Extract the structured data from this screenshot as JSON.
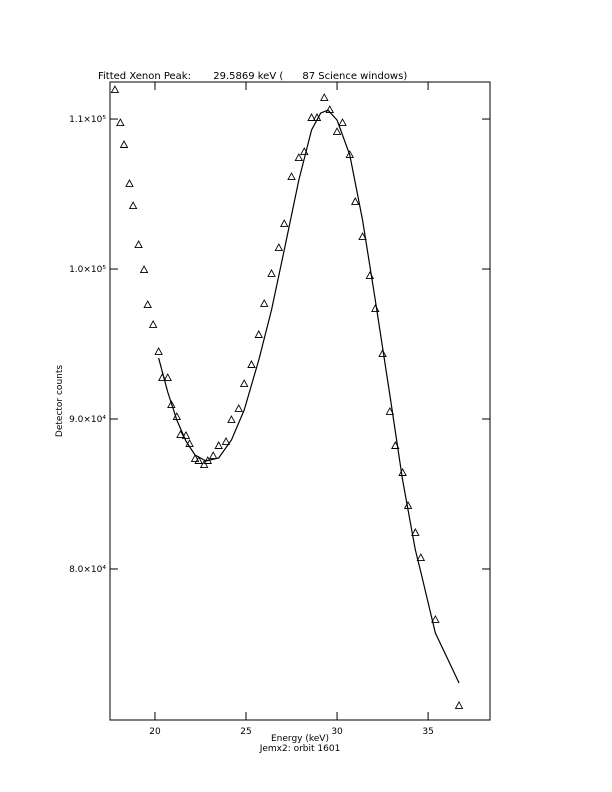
{
  "chart_data": {
    "type": "line",
    "title": "Fitted Xenon Peak:       29.5869 keV (      87 Science windows)",
    "xlabel": "Energy (keV)",
    "subtitle": "Jemx2: orbit 1601",
    "ylabel": "Detector counts",
    "xlim": [
      17.53,
      38.4
    ],
    "xticks": [
      20,
      25,
      30,
      35
    ],
    "ylim": [
      69930,
      112470
    ],
    "yticks": [
      {
        "value": 80000,
        "label": "8.0×10⁴"
      },
      {
        "value": 90000,
        "label": "9.0×10⁴"
      },
      {
        "value": 100000,
        "label": "1.0×10⁵"
      },
      {
        "value": 110000,
        "label": "1.1×10⁵"
      }
    ],
    "series": [
      {
        "style": "triangle",
        "color": "#000000",
        "x": [
          17.8,
          18.1,
          18.3,
          18.6,
          18.8,
          19.1,
          19.4,
          19.6,
          19.9,
          20.2,
          20.4,
          20.7,
          20.9,
          21.2,
          21.4,
          21.7,
          21.9,
          22.2,
          22.4,
          22.7,
          22.9,
          23.2,
          23.5,
          23.9,
          24.2,
          24.6,
          24.9,
          25.3,
          25.7,
          26.0,
          26.4,
          26.8,
          27.1,
          27.5,
          27.9,
          28.2,
          28.6,
          28.9,
          29.3,
          29.6,
          30.0,
          30.3,
          30.7,
          31.0,
          31.4,
          31.8,
          32.1,
          32.5,
          32.9,
          33.2,
          33.6,
          33.9,
          34.3,
          34.6,
          35.4,
          36.7
        ],
        "values": [
          111930,
          109730,
          108270,
          105670,
          104200,
          101600,
          99930,
          97600,
          96270,
          94470,
          92730,
          92730,
          90930,
          90130,
          88930,
          88870,
          88330,
          87330,
          87200,
          86930,
          87200,
          87530,
          88200,
          88470,
          89930,
          90670,
          92330,
          93600,
          95600,
          97670,
          99670,
          101400,
          103000,
          106130,
          107400,
          107800,
          110070,
          110070,
          111400,
          110600,
          109130,
          109730,
          107600,
          104470,
          102130,
          99530,
          97330,
          94330,
          90470,
          88200,
          86400,
          84200,
          82400,
          80730,
          76600,
          70870
        ]
      },
      {
        "style": "line",
        "color": "#000000",
        "x": [
          20.2,
          20.7,
          21.2,
          21.7,
          22.2,
          22.8,
          23.5,
          24.2,
          24.9,
          25.7,
          26.4,
          27.1,
          27.9,
          28.6,
          29.1,
          29.5,
          30.0,
          30.7,
          31.4,
          32.1,
          32.9,
          33.6,
          34.3,
          34.6,
          35.4,
          36.7
        ],
        "values": [
          94070,
          91800,
          89930,
          88530,
          87600,
          87200,
          87400,
          88600,
          90600,
          93930,
          97270,
          101270,
          105930,
          109270,
          110400,
          110600,
          109930,
          107600,
          103270,
          97930,
          91600,
          85930,
          81270,
          79800,
          75730,
          72400
        ]
      }
    ]
  }
}
